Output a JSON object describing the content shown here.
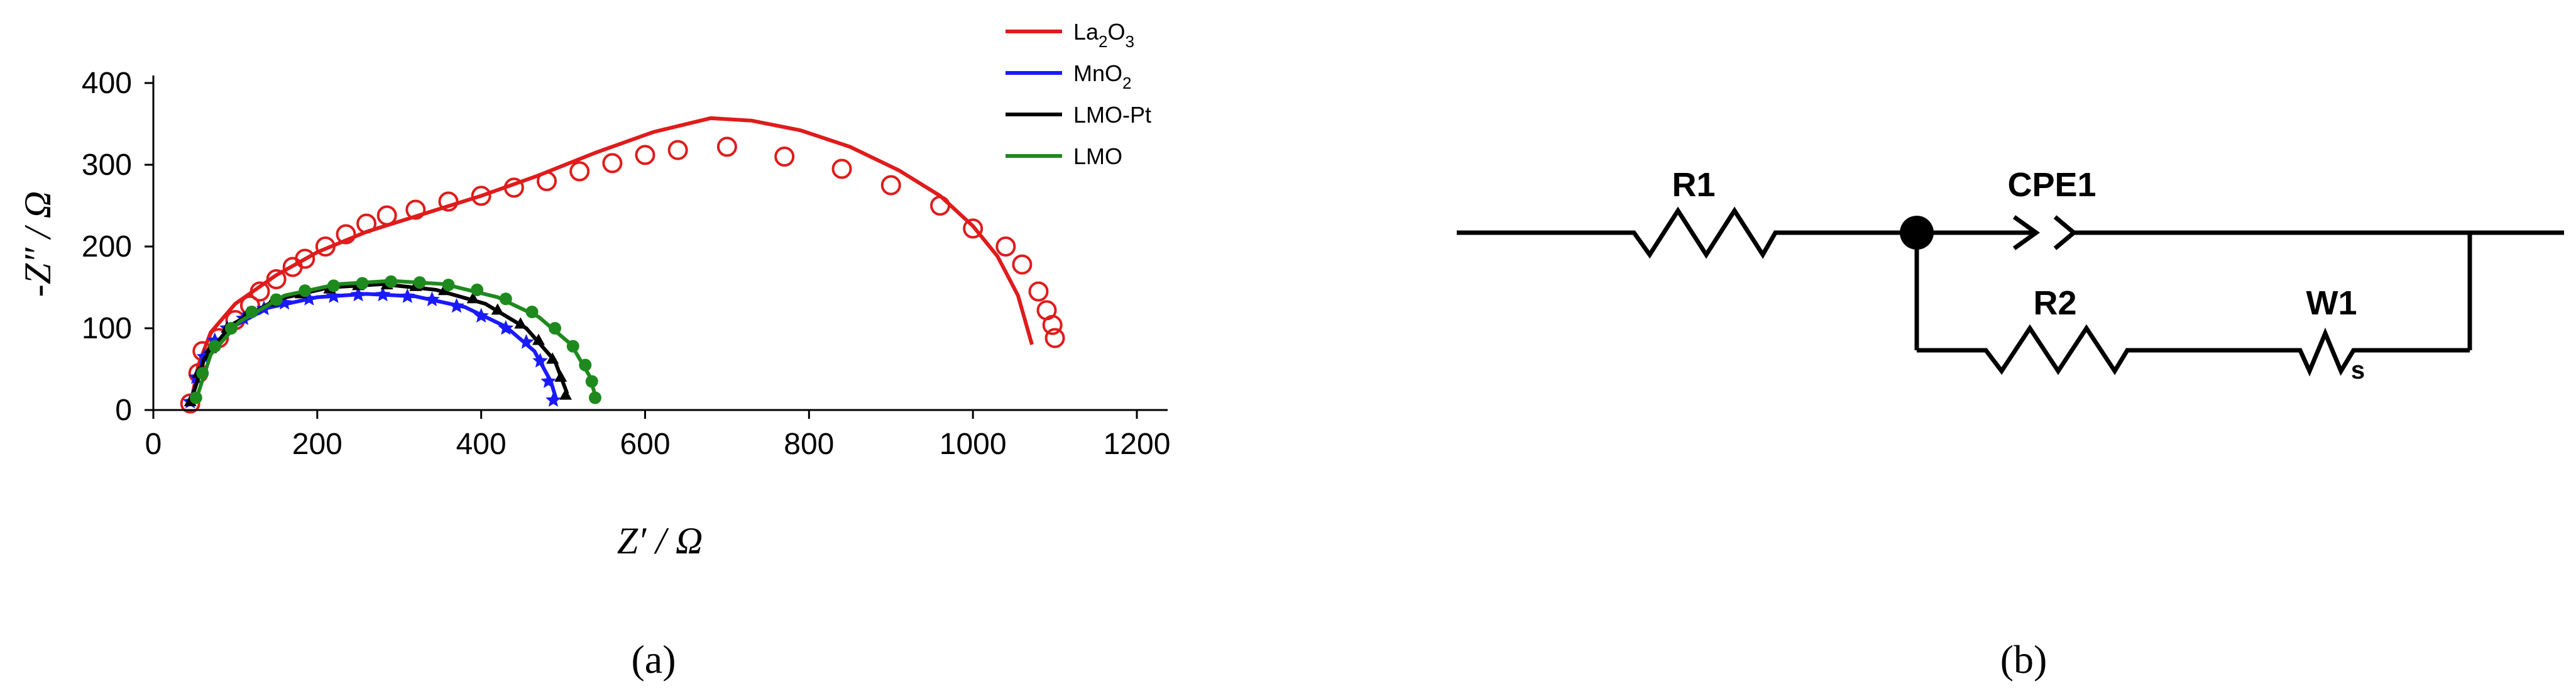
{
  "chart_data": {
    "type": "scatter",
    "xlabel": "Z′ / Ω",
    "ylabel": "-Z″ / Ω",
    "xlim": [
      0,
      1200
    ],
    "ylim": [
      0,
      400
    ],
    "xticks": [
      "0",
      "200",
      "400",
      "600",
      "800",
      "1000",
      "1200"
    ],
    "yticks": [
      "0",
      "100",
      "200",
      "300",
      "400"
    ],
    "legend_position": "top-right",
    "series": [
      {
        "name": "La2O3",
        "color": "#e01b1b",
        "marker": "open-circle",
        "points": [
          [
            45,
            8
          ],
          [
            55,
            45
          ],
          [
            60,
            72
          ],
          [
            80,
            88
          ],
          [
            100,
            110
          ],
          [
            118,
            128
          ],
          [
            130,
            145
          ],
          [
            150,
            160
          ],
          [
            170,
            175
          ],
          [
            185,
            185
          ],
          [
            210,
            200
          ],
          [
            235,
            215
          ],
          [
            260,
            228
          ],
          [
            285,
            238
          ],
          [
            320,
            245
          ],
          [
            360,
            255
          ],
          [
            400,
            262
          ],
          [
            440,
            272
          ],
          [
            480,
            280
          ],
          [
            520,
            292
          ],
          [
            560,
            302
          ],
          [
            600,
            312
          ],
          [
            640,
            318
          ],
          [
            700,
            322
          ],
          [
            770,
            310
          ],
          [
            840,
            295
          ],
          [
            900,
            275
          ],
          [
            960,
            250
          ],
          [
            1000,
            222
          ],
          [
            1040,
            200
          ],
          [
            1060,
            178
          ],
          [
            1080,
            145
          ],
          [
            1090,
            122
          ],
          [
            1097,
            104
          ],
          [
            1100,
            88
          ]
        ],
        "fit": [
          [
            45,
            5
          ],
          [
            55,
            55
          ],
          [
            70,
            95
          ],
          [
            100,
            130
          ],
          [
            150,
            165
          ],
          [
            200,
            193
          ],
          [
            260,
            218
          ],
          [
            330,
            240
          ],
          [
            400,
            262
          ],
          [
            470,
            287
          ],
          [
            540,
            315
          ],
          [
            610,
            340
          ],
          [
            680,
            357
          ],
          [
            730,
            354
          ],
          [
            790,
            342
          ],
          [
            850,
            322
          ],
          [
            910,
            293
          ],
          [
            960,
            262
          ],
          [
            1000,
            225
          ],
          [
            1030,
            188
          ],
          [
            1055,
            140
          ],
          [
            1072,
            80
          ]
        ]
      },
      {
        "name": "MnO2",
        "color": "#1a1aff",
        "marker": "star",
        "points": [
          [
            45,
            10
          ],
          [
            52,
            40
          ],
          [
            62,
            65
          ],
          [
            75,
            85
          ],
          [
            90,
            100
          ],
          [
            110,
            112
          ],
          [
            135,
            124
          ],
          [
            160,
            131
          ],
          [
            190,
            136
          ],
          [
            220,
            139
          ],
          [
            250,
            141
          ],
          [
            280,
            141
          ],
          [
            310,
            139
          ],
          [
            340,
            135
          ],
          [
            370,
            127
          ],
          [
            400,
            115
          ],
          [
            430,
            100
          ],
          [
            455,
            83
          ],
          [
            472,
            60
          ],
          [
            482,
            35
          ],
          [
            488,
            12
          ]
        ],
        "fit": [
          [
            45,
            8
          ],
          [
            60,
            60
          ],
          [
            90,
            98
          ],
          [
            140,
            125
          ],
          [
            200,
            138
          ],
          [
            260,
            142
          ],
          [
            320,
            139
          ],
          [
            380,
            126
          ],
          [
            430,
            102
          ],
          [
            465,
            72
          ],
          [
            485,
            35
          ],
          [
            492,
            12
          ]
        ]
      },
      {
        "name": "LMO-Pt",
        "color": "#000000",
        "marker": "triangle",
        "points": [
          [
            45,
            10
          ],
          [
            55,
            45
          ],
          [
            70,
            75
          ],
          [
            90,
            100
          ],
          [
            115,
            118
          ],
          [
            145,
            132
          ],
          [
            180,
            142
          ],
          [
            215,
            148
          ],
          [
            250,
            152
          ],
          [
            285,
            153
          ],
          [
            320,
            151
          ],
          [
            355,
            146
          ],
          [
            390,
            136
          ],
          [
            420,
            122
          ],
          [
            448,
            105
          ],
          [
            470,
            85
          ],
          [
            487,
            62
          ],
          [
            497,
            40
          ],
          [
            503,
            18
          ]
        ],
        "fit": [
          [
            45,
            8
          ],
          [
            62,
            62
          ],
          [
            95,
            104
          ],
          [
            150,
            135
          ],
          [
            215,
            150
          ],
          [
            280,
            154
          ],
          [
            345,
            147
          ],
          [
            405,
            130
          ],
          [
            455,
            100
          ],
          [
            490,
            60
          ],
          [
            505,
            20
          ]
        ]
      },
      {
        "name": "LMO",
        "color": "#1e8a1e",
        "marker": "filled-circle",
        "points": [
          [
            52,
            15
          ],
          [
            60,
            45
          ],
          [
            75,
            78
          ],
          [
            95,
            100
          ],
          [
            120,
            120
          ],
          [
            150,
            135
          ],
          [
            185,
            146
          ],
          [
            220,
            152
          ],
          [
            255,
            155
          ],
          [
            290,
            157
          ],
          [
            325,
            156
          ],
          [
            360,
            153
          ],
          [
            395,
            147
          ],
          [
            430,
            136
          ],
          [
            462,
            120
          ],
          [
            490,
            100
          ],
          [
            512,
            78
          ],
          [
            527,
            55
          ],
          [
            535,
            35
          ],
          [
            539,
            15
          ]
        ],
        "fit": [
          [
            52,
            12
          ],
          [
            70,
            68
          ],
          [
            105,
            108
          ],
          [
            160,
            140
          ],
          [
            225,
            154
          ],
          [
            290,
            158
          ],
          [
            355,
            154
          ],
          [
            420,
            138
          ],
          [
            470,
            114
          ],
          [
            510,
            80
          ],
          [
            532,
            42
          ],
          [
            540,
            15
          ]
        ]
      }
    ]
  },
  "legend": {
    "items": [
      {
        "base": "La",
        "sub1": "2",
        "mid": "O",
        "sub2": "3",
        "color": "#e01b1b"
      },
      {
        "base": "MnO",
        "sub1": "2",
        "mid": "",
        "sub2": "",
        "color": "#1a1aff"
      },
      {
        "base": "LMO-Pt",
        "sub1": "",
        "mid": "",
        "sub2": "",
        "color": "#000000"
      },
      {
        "base": "LMO",
        "sub1": "",
        "mid": "",
        "sub2": "",
        "color": "#1e8a1e"
      }
    ]
  },
  "circuit": {
    "labels": {
      "r1": "R1",
      "cpe1": "CPE1",
      "r2": "R2",
      "w1": "W1",
      "ws": "s"
    }
  },
  "captions": {
    "a": "(a)",
    "b": "(b)"
  }
}
